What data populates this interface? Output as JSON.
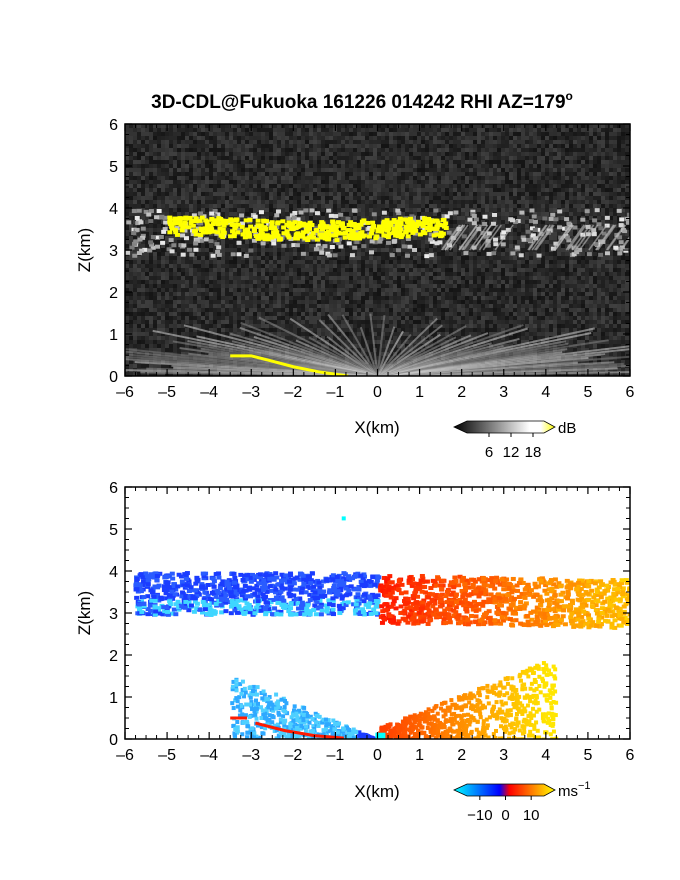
{
  "figure": {
    "title": "3D-CDL@Fukuoka 161226 014242 RHI AZ=179",
    "title_superscript": "o"
  },
  "chart_data": [
    {
      "type": "heatmap",
      "panel": "top",
      "xlabel": "X(km)",
      "ylabel": "Z(km)",
      "xlim": [
        -6,
        6
      ],
      "ylim": [
        0,
        6
      ],
      "xticks": [
        "-6",
        "-5",
        "-4",
        "-3",
        "-2",
        "-1",
        "0",
        "1",
        "2",
        "3",
        "4",
        "5",
        "6"
      ],
      "yticks": [
        "0",
        "1",
        "2",
        "3",
        "4",
        "5",
        "6"
      ],
      "colorbar": {
        "unit": "dB",
        "ticks": [
          "6",
          "12",
          "18"
        ],
        "tick_values": [
          6,
          12,
          18
        ],
        "range": [
          0,
          21
        ],
        "colors": [
          "#000000",
          "#ffffff",
          "#ffff00"
        ]
      },
      "background_color": "#1e1e1e",
      "features": [
        {
          "name": "cloud layer",
          "x_range": [
            -6,
            6
          ],
          "z_range": [
            2.9,
            4.0
          ]
        },
        {
          "name": "strong echo",
          "color": "#ffff00",
          "x_range": [
            -5,
            1.6
          ],
          "z_range": [
            3.2,
            4.0
          ]
        },
        {
          "name": "boundary layer fan",
          "x_range": [
            -4.2,
            5.2
          ],
          "z_range": [
            0,
            1.7
          ]
        },
        {
          "name": "ground echo",
          "color": "#ffff00",
          "x_range": [
            -3.5,
            -0.7
          ],
          "z_range": [
            0,
            0.5
          ]
        }
      ]
    },
    {
      "type": "heatmap",
      "panel": "bottom",
      "xlabel": "X(km)",
      "ylabel": "Z(km)",
      "xlim": [
        -6,
        6
      ],
      "ylim": [
        0,
        6
      ],
      "xticks": [
        "-6",
        "-5",
        "-4",
        "-3",
        "-2",
        "-1",
        "0",
        "1",
        "2",
        "3",
        "4",
        "5",
        "6"
      ],
      "yticks": [
        "0",
        "1",
        "2",
        "3",
        "4",
        "5",
        "6"
      ],
      "colorbar": {
        "unit": "ms",
        "unit_superscript": "−1",
        "ticks": [
          "−10",
          "0",
          "10"
        ],
        "tick_values": [
          -10,
          0,
          10
        ],
        "range": [
          -15,
          15
        ],
        "colors": [
          "#00ffff",
          "#0000ff",
          "#ff0000",
          "#ffff00"
        ]
      },
      "background_color": "#ffffff",
      "features": [
        {
          "name": "cloud layer negative velocity",
          "color": "#1a3cff",
          "x_range": [
            -5.8,
            0
          ],
          "z_range": [
            3.0,
            4.0
          ]
        },
        {
          "name": "cloud layer positive velocity",
          "color": "#ff2a00",
          "x_range": [
            0,
            6
          ],
          "z_range": [
            2.8,
            4.0
          ]
        },
        {
          "name": "low level negative velocity",
          "color": "#2ea8ff",
          "x_range": [
            -3.5,
            0
          ],
          "z_range": [
            0,
            1.5
          ]
        },
        {
          "name": "low level positive velocity",
          "color": "#ff9900",
          "x_range": [
            0,
            4.2
          ],
          "z_range": [
            0,
            1.9
          ]
        }
      ]
    }
  ]
}
